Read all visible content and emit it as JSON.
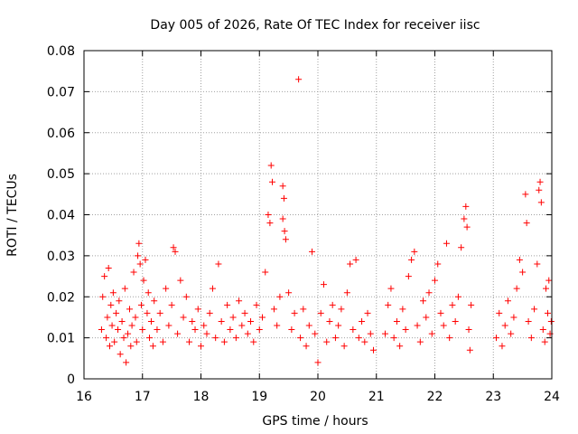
{
  "chart_data": {
    "type": "scatter",
    "title": "Day 005 of 2026, Rate Of TEC Index for receiver iisc",
    "xlabel": "GPS time / hours",
    "ylabel": "ROTI / TECUs",
    "xlim": [
      16,
      24
    ],
    "ylim": [
      0,
      0.08
    ],
    "xticks": [
      "16",
      "17",
      "18",
      "19",
      "20",
      "21",
      "22",
      "23",
      "24"
    ],
    "yticks": [
      "0",
      "0.01",
      "0.02",
      "0.03",
      "0.04",
      "0.05",
      "0.06",
      "0.07",
      "0.08"
    ],
    "grid": true,
    "marker": "+",
    "color": "#ff0000",
    "series": [
      {
        "name": "ROTI",
        "points": [
          [
            16.3,
            0.012
          ],
          [
            16.32,
            0.02
          ],
          [
            16.35,
            0.025
          ],
          [
            16.38,
            0.01
          ],
          [
            16.4,
            0.015
          ],
          [
            16.42,
            0.027
          ],
          [
            16.44,
            0.008
          ],
          [
            16.46,
            0.018
          ],
          [
            16.48,
            0.013
          ],
          [
            16.5,
            0.021
          ],
          [
            16.52,
            0.009
          ],
          [
            16.55,
            0.016
          ],
          [
            16.58,
            0.012
          ],
          [
            16.6,
            0.019
          ],
          [
            16.62,
            0.006
          ],
          [
            16.65,
            0.014
          ],
          [
            16.68,
            0.01
          ],
          [
            16.7,
            0.022
          ],
          [
            16.72,
            0.004
          ],
          [
            16.75,
            0.011
          ],
          [
            16.78,
            0.017
          ],
          [
            16.8,
            0.008
          ],
          [
            16.82,
            0.013
          ],
          [
            16.85,
            0.026
          ],
          [
            16.88,
            0.015
          ],
          [
            16.9,
            0.009
          ],
          [
            16.92,
            0.03
          ],
          [
            16.94,
            0.033
          ],
          [
            16.96,
            0.028
          ],
          [
            16.98,
            0.018
          ],
          [
            17.0,
            0.012
          ],
          [
            17.02,
            0.024
          ],
          [
            17.05,
            0.029
          ],
          [
            17.08,
            0.016
          ],
          [
            17.1,
            0.021
          ],
          [
            17.12,
            0.01
          ],
          [
            17.15,
            0.014
          ],
          [
            17.18,
            0.008
          ],
          [
            17.2,
            0.019
          ],
          [
            17.25,
            0.012
          ],
          [
            17.3,
            0.016
          ],
          [
            17.35,
            0.009
          ],
          [
            17.4,
            0.022
          ],
          [
            17.45,
            0.013
          ],
          [
            17.5,
            0.018
          ],
          [
            17.53,
            0.032
          ],
          [
            17.56,
            0.031
          ],
          [
            17.6,
            0.011
          ],
          [
            17.65,
            0.024
          ],
          [
            17.7,
            0.015
          ],
          [
            17.75,
            0.02
          ],
          [
            17.8,
            0.009
          ],
          [
            17.85,
            0.014
          ],
          [
            17.9,
            0.012
          ],
          [
            17.95,
            0.017
          ],
          [
            18.0,
            0.008
          ],
          [
            18.05,
            0.013
          ],
          [
            18.1,
            0.011
          ],
          [
            18.15,
            0.016
          ],
          [
            18.2,
            0.022
          ],
          [
            18.25,
            0.01
          ],
          [
            18.3,
            0.028
          ],
          [
            18.35,
            0.014
          ],
          [
            18.4,
            0.009
          ],
          [
            18.45,
            0.018
          ],
          [
            18.5,
            0.012
          ],
          [
            18.55,
            0.015
          ],
          [
            18.6,
            0.01
          ],
          [
            18.65,
            0.019
          ],
          [
            18.7,
            0.013
          ],
          [
            18.75,
            0.016
          ],
          [
            18.8,
            0.011
          ],
          [
            18.85,
            0.014
          ],
          [
            18.9,
            0.009
          ],
          [
            18.95,
            0.018
          ],
          [
            19.0,
            0.012
          ],
          [
            19.05,
            0.015
          ],
          [
            19.1,
            0.026
          ],
          [
            19.15,
            0.04
          ],
          [
            19.18,
            0.038
          ],
          [
            19.2,
            0.052
          ],
          [
            19.22,
            0.048
          ],
          [
            19.25,
            0.017
          ],
          [
            19.3,
            0.013
          ],
          [
            19.35,
            0.02
          ],
          [
            19.4,
            0.047
          ],
          [
            19.42,
            0.044
          ],
          [
            19.4,
            0.039
          ],
          [
            19.43,
            0.036
          ],
          [
            19.45,
            0.034
          ],
          [
            19.5,
            0.021
          ],
          [
            19.55,
            0.012
          ],
          [
            19.6,
            0.016
          ],
          [
            19.67,
            0.073
          ],
          [
            19.7,
            0.01
          ],
          [
            19.75,
            0.017
          ],
          [
            19.8,
            0.008
          ],
          [
            19.85,
            0.013
          ],
          [
            19.9,
            0.031
          ],
          [
            19.95,
            0.011
          ],
          [
            20.0,
            0.004
          ],
          [
            20.05,
            0.016
          ],
          [
            20.1,
            0.023
          ],
          [
            20.15,
            0.009
          ],
          [
            20.2,
            0.014
          ],
          [
            20.25,
            0.018
          ],
          [
            20.3,
            0.01
          ],
          [
            20.35,
            0.013
          ],
          [
            20.4,
            0.017
          ],
          [
            20.45,
            0.008
          ],
          [
            20.5,
            0.021
          ],
          [
            20.55,
            0.028
          ],
          [
            20.6,
            0.012
          ],
          [
            20.65,
            0.029
          ],
          [
            20.7,
            0.01
          ],
          [
            20.75,
            0.014
          ],
          [
            20.8,
            0.009
          ],
          [
            20.85,
            0.016
          ],
          [
            20.9,
            0.011
          ],
          [
            20.95,
            0.007
          ],
          [
            21.15,
            0.011
          ],
          [
            21.2,
            0.018
          ],
          [
            21.25,
            0.022
          ],
          [
            21.3,
            0.01
          ],
          [
            21.35,
            0.014
          ],
          [
            21.4,
            0.008
          ],
          [
            21.45,
            0.017
          ],
          [
            21.5,
            0.012
          ],
          [
            21.55,
            0.025
          ],
          [
            21.6,
            0.029
          ],
          [
            21.65,
            0.031
          ],
          [
            21.7,
            0.013
          ],
          [
            21.75,
            0.009
          ],
          [
            21.8,
            0.019
          ],
          [
            21.85,
            0.015
          ],
          [
            21.9,
            0.021
          ],
          [
            21.95,
            0.011
          ],
          [
            22.0,
            0.024
          ],
          [
            22.05,
            0.028
          ],
          [
            22.1,
            0.016
          ],
          [
            22.15,
            0.013
          ],
          [
            22.2,
            0.033
          ],
          [
            22.25,
            0.01
          ],
          [
            22.3,
            0.018
          ],
          [
            22.35,
            0.014
          ],
          [
            22.4,
            0.02
          ],
          [
            22.45,
            0.032
          ],
          [
            22.5,
            0.039
          ],
          [
            22.53,
            0.042
          ],
          [
            22.55,
            0.037
          ],
          [
            22.58,
            0.012
          ],
          [
            22.6,
            0.007
          ],
          [
            22.62,
            0.018
          ],
          [
            23.05,
            0.01
          ],
          [
            23.1,
            0.016
          ],
          [
            23.15,
            0.008
          ],
          [
            23.2,
            0.013
          ],
          [
            23.25,
            0.019
          ],
          [
            23.3,
            0.011
          ],
          [
            23.35,
            0.015
          ],
          [
            23.4,
            0.022
          ],
          [
            23.45,
            0.029
          ],
          [
            23.5,
            0.026
          ],
          [
            23.55,
            0.045
          ],
          [
            23.57,
            0.038
          ],
          [
            23.6,
            0.014
          ],
          [
            23.65,
            0.01
          ],
          [
            23.7,
            0.017
          ],
          [
            23.75,
            0.028
          ],
          [
            23.78,
            0.046
          ],
          [
            23.8,
            0.048
          ],
          [
            23.82,
            0.043
          ],
          [
            23.85,
            0.012
          ],
          [
            23.88,
            0.009
          ],
          [
            23.9,
            0.022
          ],
          [
            23.93,
            0.016
          ],
          [
            23.95,
            0.024
          ],
          [
            23.97,
            0.011
          ],
          [
            23.99,
            0.014
          ]
        ]
      }
    ]
  }
}
